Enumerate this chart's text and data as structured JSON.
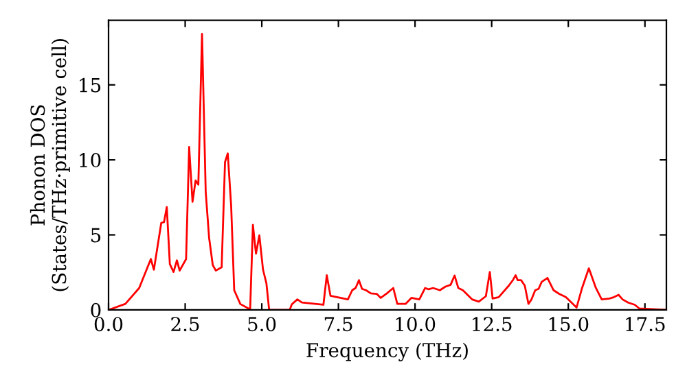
{
  "chart_data": {
    "type": "line",
    "xlabel": "Frequency (THz)",
    "ylabel": "Phonon DOS\n(States/THz·primitive cell)",
    "xlim": [
      0,
      18.2
    ],
    "ylim": [
      0,
      19.3
    ],
    "xticks": [
      {
        "value": 0,
        "label": "0.0"
      },
      {
        "value": 2.5,
        "label": "2.5"
      },
      {
        "value": 5,
        "label": "5.0"
      },
      {
        "value": 7.5,
        "label": "7.5"
      },
      {
        "value": 10,
        "label": "10.0"
      },
      {
        "value": 12.5,
        "label": "12.5"
      },
      {
        "value": 15,
        "label": "15.0"
      },
      {
        "value": 17.5,
        "label": "17.5"
      }
    ],
    "yticks": [
      0,
      5,
      10,
      15
    ],
    "grid": false,
    "marker": "none",
    "line_style": "solid",
    "series": [
      {
        "color": "#ff0000",
        "x": [
          0,
          0.55,
          1.0,
          1.38,
          1.48,
          1.72,
          1.81,
          1.9,
          2.0,
          2.12,
          2.23,
          2.32,
          2.53,
          2.63,
          2.74,
          2.84,
          2.93,
          3.05,
          3.17,
          3.28,
          3.4,
          3.5,
          3.69,
          3.8,
          3.89,
          4.0,
          4.1,
          4.3,
          4.62,
          4.71,
          4.81,
          4.92,
          5.04,
          5.15,
          5.24,
          5.91,
          5.98,
          6.16,
          6.31,
          7.01,
          7.12,
          7.24,
          7.81,
          7.95,
          8.06,
          8.17,
          8.27,
          8.4,
          8.56,
          8.75,
          8.88,
          9.08,
          9.29,
          9.42,
          9.69,
          9.88,
          10.14,
          10.33,
          10.44,
          10.59,
          10.81,
          10.99,
          11.16,
          11.29,
          11.41,
          11.56,
          11.86,
          12.08,
          12.31,
          12.44,
          12.53,
          12.73,
          13.06,
          13.2,
          13.28,
          13.35,
          13.46,
          13.58,
          13.7,
          13.8,
          13.92,
          14.03,
          14.13,
          14.32,
          14.52,
          14.7,
          14.92,
          15.15,
          15.27,
          15.45,
          15.67,
          15.9,
          16.09,
          16.34,
          16.49,
          16.64,
          16.77,
          16.95,
          17.17,
          17.32,
          18.2
        ],
        "values": [
          0,
          0.4,
          1.46,
          3.39,
          2.68,
          5.8,
          5.85,
          6.86,
          3.05,
          2.53,
          3.3,
          2.62,
          3.39,
          10.86,
          7.2,
          8.63,
          8.35,
          18.4,
          7.87,
          4.82,
          2.99,
          2.62,
          2.84,
          9.85,
          10.43,
          6.95,
          1.31,
          0.39,
          0.03,
          5.67,
          3.75,
          4.97,
          2.68,
          1.77,
          0,
          0,
          0.37,
          0.7,
          0.49,
          0.34,
          2.31,
          0.94,
          0.7,
          1.31,
          1.46,
          1.98,
          1.4,
          1.31,
          1.1,
          1.07,
          0.8,
          1.1,
          1.46,
          0.4,
          0.4,
          0.8,
          0.7,
          1.46,
          1.37,
          1.46,
          1.31,
          1.55,
          1.67,
          2.29,
          1.46,
          1.31,
          0.7,
          0.55,
          0.91,
          2.53,
          0.76,
          0.85,
          1.62,
          2.01,
          2.31,
          1.98,
          1.98,
          1.62,
          0.4,
          0.7,
          1.31,
          1.4,
          1.86,
          2.13,
          1.31,
          1.07,
          0.85,
          0.4,
          0.16,
          1.46,
          2.77,
          1.46,
          0.7,
          0.76,
          0.85,
          1.0,
          0.7,
          0.49,
          0.34,
          0.09,
          0
        ]
      }
    ]
  }
}
